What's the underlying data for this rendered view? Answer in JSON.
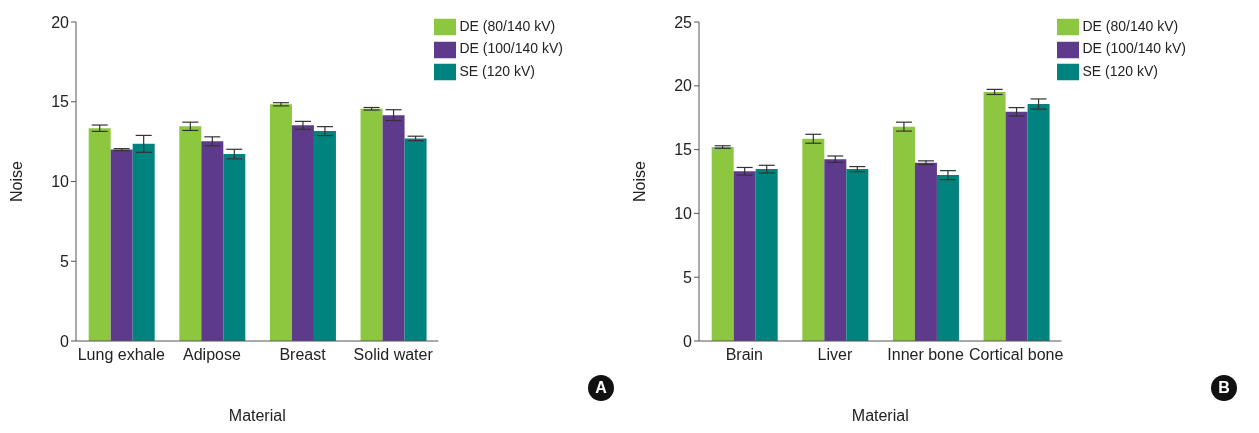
{
  "chart_data": [
    {
      "type": "bar",
      "xlabel": "Material",
      "ylabel": "Noise",
      "categories": [
        "Lung exhale",
        "Adipose",
        "Breast",
        "Solid water"
      ],
      "ylim": [
        0,
        20
      ],
      "yticks": [
        0,
        5,
        10,
        15,
        20
      ],
      "grid": false,
      "legend": "top right",
      "annotations": [
        "A"
      ],
      "series": [
        {
          "name": "DE (80/140 kV)",
          "color": "#8dc63f",
          "values": [
            13.34,
            13.46,
            14.84,
            14.56
          ],
          "errors": [
            0.2,
            0.26,
            0.1,
            0.08
          ]
        },
        {
          "name": "DE (100/140 kV)",
          "color": "#5e3a8c",
          "values": [
            12.0,
            12.52,
            13.52,
            14.16
          ],
          "errors": [
            0.06,
            0.28,
            0.25,
            0.34
          ]
        },
        {
          "name": "SE (120 kV)",
          "color": "#00827f",
          "values": [
            12.36,
            11.72,
            13.16,
            12.7
          ],
          "errors": [
            0.53,
            0.3,
            0.28,
            0.14
          ]
        }
      ]
    },
    {
      "type": "bar",
      "xlabel": "Material",
      "ylabel": "Noise",
      "categories": [
        "Brain",
        "Liver",
        "Inner bone",
        "Cortical bone"
      ],
      "ylim": [
        0,
        25
      ],
      "yticks": [
        0,
        5,
        10,
        15,
        20,
        25
      ],
      "grid": false,
      "legend": "top right",
      "annotations": [
        "B"
      ],
      "series": [
        {
          "name": "DE (80/140 kV)",
          "color": "#8dc63f",
          "values": [
            15.2,
            15.85,
            16.8,
            19.52
          ],
          "errors": [
            0.1,
            0.35,
            0.35,
            0.2
          ]
        },
        {
          "name": "DE (100/140 kV)",
          "color": "#5e3a8c",
          "values": [
            13.3,
            14.25,
            13.97,
            17.96
          ],
          "errors": [
            0.3,
            0.25,
            0.15,
            0.33
          ]
        },
        {
          "name": "SE (120 kV)",
          "color": "#00827f",
          "values": [
            13.47,
            13.47,
            13.0,
            18.57
          ],
          "errors": [
            0.3,
            0.2,
            0.35,
            0.4
          ]
        }
      ]
    }
  ]
}
